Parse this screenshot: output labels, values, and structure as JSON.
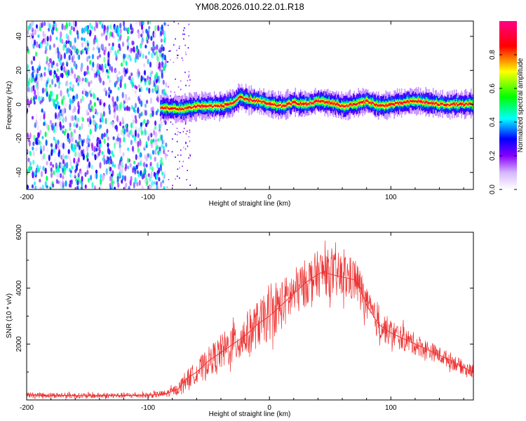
{
  "title": "YM08.2026.010.22.01.R18",
  "chart_data": [
    {
      "type": "heatmap",
      "name": "spectrogram",
      "xlabel": "Height of straight line (km)",
      "ylabel": "Frequency (Hz)",
      "xlim": [
        -200,
        168
      ],
      "ylim": [
        -50,
        49
      ],
      "x_ticks": [
        -200,
        -100,
        0,
        100
      ],
      "y_ticks": [
        40,
        20,
        0,
        -20,
        -40
      ],
      "colorbar": {
        "label": "Normalized spectral amplitude",
        "range": [
          0.0,
          1.0
        ],
        "ticks": [
          0.0,
          0.2,
          0.4,
          0.6,
          0.8
        ],
        "colormap": [
          "#ffffff",
          "#8800ff",
          "#0000ff",
          "#00ffff",
          "#00ff00",
          "#ffff00",
          "#ff0000",
          "#ff0088"
        ]
      },
      "noise_region": {
        "x_range": [
          -200,
          -80
        ],
        "amplitude": [
          0.0,
          0.5
        ]
      },
      "signal_ridge": {
        "x": [
          -90,
          -85,
          -75,
          -60,
          -40,
          -30,
          -25,
          -20,
          -10,
          0,
          10,
          20,
          30,
          40,
          50,
          60,
          70,
          80,
          90,
          100,
          110,
          120,
          130,
          140,
          150,
          168
        ],
        "frequency": [
          -2,
          -2,
          -3,
          -1,
          -1,
          1,
          4,
          3,
          2,
          0,
          -1,
          1,
          0,
          2,
          1,
          -1,
          0,
          2,
          -1,
          0,
          1,
          2,
          1,
          0,
          0,
          0
        ],
        "peak_amplitude": 0.95
      }
    },
    {
      "type": "line",
      "name": "snr",
      "xlabel": "Height of straight line (km)",
      "ylabel": "SNR (10 * v/v)",
      "xlim": [
        -200,
        168
      ],
      "ylim": [
        0,
        6000
      ],
      "x_ticks": [
        -200,
        -100,
        0,
        100
      ],
      "y_ticks": [
        2000,
        4000,
        6000
      ],
      "color": "#ee3333",
      "series": [
        {
          "name": "SNR",
          "x": [
            -200,
            -150,
            -100,
            -85,
            -75,
            -70,
            -60,
            -50,
            -40,
            -30,
            -20,
            -10,
            0,
            10,
            20,
            30,
            40,
            45,
            50,
            60,
            70,
            75,
            80,
            90,
            100,
            110,
            120,
            130,
            140,
            150,
            160,
            168
          ],
          "y": [
            180,
            150,
            170,
            220,
            400,
            700,
            1000,
            1400,
            1700,
            2000,
            2300,
            2700,
            3000,
            3400,
            3800,
            4200,
            4500,
            4600,
            4500,
            4400,
            4300,
            4000,
            3400,
            2700,
            2400,
            2200,
            2000,
            1800,
            1600,
            1400,
            1150,
            1000
          ],
          "noise_amplitude": [
            100,
            100,
            100,
            140,
            200,
            300,
            400,
            500,
            650,
            750,
            800,
            850,
            900,
            900,
            900,
            850,
            850,
            850,
            850,
            850,
            800,
            700,
            600,
            550,
            500,
            450,
            400,
            350,
            300,
            300,
            250,
            250
          ]
        }
      ]
    }
  ]
}
